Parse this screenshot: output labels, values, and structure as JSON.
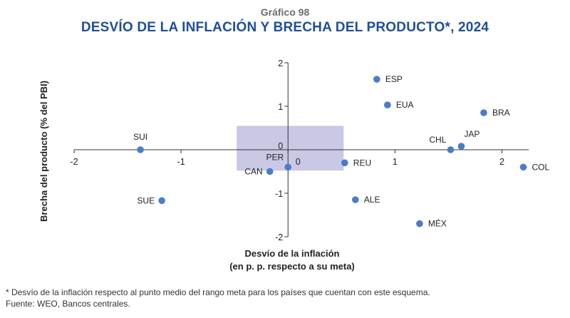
{
  "header": {
    "kicker": "Gráfico 98",
    "title": "DESVÍO DE LA INFLACIÓN Y BRECHA DEL PRODUCTO*, 2024"
  },
  "chart_data": {
    "type": "scatter",
    "xlabel": "Desvío de la inflación",
    "xlabel_line2": "(en p. p. respecto a su meta)",
    "ylabel": "Brecha del producto (% del PBI)",
    "xlim": [
      -2.0,
      2.25
    ],
    "ylim": [
      -2,
      2
    ],
    "x_ticks": [
      -2,
      -1,
      0,
      1,
      2
    ],
    "x_tick_labels": [
      "-2",
      "-1",
      "0",
      "1",
      "2"
    ],
    "y_ticks": [
      -2,
      -1,
      0,
      1,
      2
    ],
    "y_tick_labels": [
      "-2",
      "-1",
      "0",
      "1",
      "2"
    ],
    "target_band": {
      "x": [
        -0.48,
        0.52
      ],
      "y": [
        -0.48,
        0.55
      ],
      "color": "#c9c9e6"
    },
    "marker_color": "#4a7cc7",
    "points": [
      {
        "label": "ESP",
        "x": 0.83,
        "y": 1.62,
        "label_pos": "right"
      },
      {
        "label": "EUA",
        "x": 0.93,
        "y": 1.03,
        "label_pos": "right"
      },
      {
        "label": "BRA",
        "x": 1.83,
        "y": 0.85,
        "label_pos": "right"
      },
      {
        "label": "JAP",
        "x": 1.62,
        "y": 0.08,
        "label_pos": "upright"
      },
      {
        "label": "CHL",
        "x": 1.52,
        "y": 0.0,
        "label_pos": "upleft"
      },
      {
        "label": "COL",
        "x": 2.2,
        "y": -0.4,
        "label_pos": "right"
      },
      {
        "label": "SUI",
        "x": -1.38,
        "y": 0.0,
        "label_pos": "above"
      },
      {
        "label": "SUE",
        "x": -1.18,
        "y": -1.17,
        "label_pos": "left"
      },
      {
        "label": "PER",
        "x": 0.0,
        "y": -0.4,
        "label_pos": "upleft"
      },
      {
        "label": "CAN",
        "x": -0.17,
        "y": -0.5,
        "label_pos": "left"
      },
      {
        "label": "REU",
        "x": 0.53,
        "y": -0.3,
        "label_pos": "right"
      },
      {
        "label": "ALE",
        "x": 0.63,
        "y": -1.15,
        "label_pos": "right"
      },
      {
        "label": "MÉX",
        "x": 1.23,
        "y": -1.7,
        "label_pos": "right"
      }
    ]
  },
  "footnotes": {
    "note": "* Desvío de la inflación respecto al punto medio del rango meta para los países que cuentan con este esquema.",
    "source": "Fuente: WEO, Bancos centrales."
  }
}
